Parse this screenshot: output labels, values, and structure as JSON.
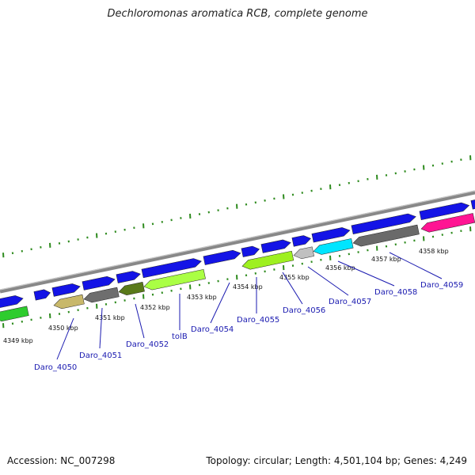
{
  "title": "Dechloromonas aromatica RCB, complete genome",
  "footer": {
    "accession": "Accession: NC_007298",
    "topology": "Topology: circular; Length: 4,501,104 bp; Genes: 4,249"
  },
  "colors": {
    "backbone": "#8a8a8a",
    "tick": "#2e8b1e",
    "label": "#1a1ab0",
    "forward_gene": "#1414e6",
    "reverse_gene_palette": [
      "#2ecc2e",
      "#c8b86a",
      "#6e6e6e",
      "#5a7a1a",
      "#aaff44",
      "#9ef020",
      "#c0c0c0",
      "#00e5ff",
      "#6a6a6a",
      "#ff1493"
    ]
  },
  "kbp_labels": [
    "4349 kbp",
    "4350 kbp",
    "4351 kbp",
    "4352 kbp",
    "4353 kbp",
    "4354 kbp",
    "4355 kbp",
    "4356 kbp",
    "4357 kbp",
    "4358 kbp"
  ],
  "gene_labels": [
    "Daro_4050",
    "Daro_4051",
    "Daro_4052",
    "tolB",
    "Daro_4054",
    "Daro_4055",
    "Daro_4056",
    "Daro_4057",
    "Daro_4058",
    "Daro_4059"
  ]
}
